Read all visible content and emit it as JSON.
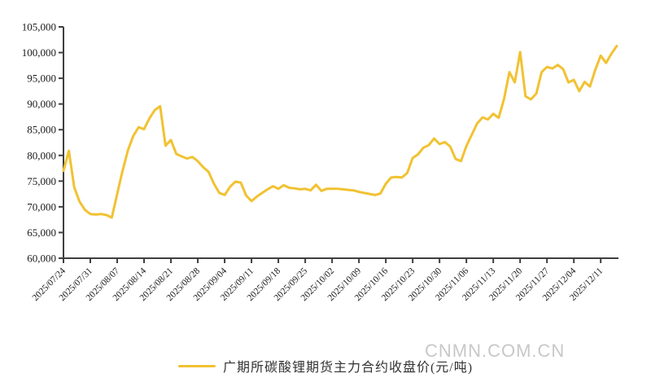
{
  "watermark": "CNMN.COM.CN",
  "legend": {
    "label": "广期所碳酸锂期货主力合约收盘价(元/吨)"
  },
  "chart_data": {
    "type": "line",
    "title": "",
    "xlabel": "",
    "ylabel": "",
    "series_name": "广期所碳酸锂期货主力合约收盘价(元/吨)",
    "line_color": "#F1C232",
    "axis_color": "#3f3f3f",
    "grid": false,
    "legend_position": "bottom-center",
    "ylim": [
      60000,
      105000
    ],
    "y_tick_step": 5000,
    "y_tick_labels": [
      "60,000",
      "65,000",
      "70,000",
      "75,000",
      "80,000",
      "85,000",
      "90,000",
      "95,000",
      "100,000",
      "105,000"
    ],
    "points_per_tick": 5,
    "x_tick_labels": [
      "2025/07/24",
      "2025/07/31",
      "2025/08/07",
      "2025/08/14",
      "2025/08/21",
      "2025/08/28",
      "2025/09/04",
      "2025/09/11",
      "2025/09/18",
      "2025/09/25",
      "2025/10/02",
      "2025/10/09",
      "2025/10/16",
      "2025/10/23",
      "2025/10/30",
      "2025/11/06",
      "2025/11/13",
      "2025/11/20",
      "2025/11/27",
      "2025/12/04",
      "2025/12/11"
    ],
    "values": [
      77000,
      80900,
      73800,
      71000,
      69400,
      68600,
      68500,
      68600,
      68400,
      67900,
      72500,
      77000,
      81000,
      83800,
      85500,
      85100,
      87200,
      88800,
      89560,
      81900,
      83000,
      80300,
      79800,
      79400,
      79700,
      78900,
      77700,
      76800,
      74500,
      72700,
      72300,
      73900,
      74900,
      74700,
      72200,
      71100,
      72000,
      72700,
      73400,
      74000,
      73500,
      74200,
      73700,
      73600,
      73400,
      73500,
      73200,
      74300,
      73100,
      73500,
      73500,
      73500,
      73400,
      73300,
      73200,
      72900,
      72700,
      72500,
      72300,
      72600,
      74500,
      75700,
      75800,
      75700,
      76600,
      79500,
      80200,
      81500,
      82000,
      83300,
      82200,
      82600,
      81700,
      79300,
      78900,
      81800,
      84000,
      86200,
      87400,
      87000,
      88100,
      87300,
      91000,
      96200,
      94200,
      100100,
      91500,
      90900,
      92000,
      96200,
      97200,
      96900,
      97600,
      96800,
      94200,
      94700,
      92500,
      94300,
      93400,
      96700,
      99400,
      98000,
      99800,
      101300
    ]
  }
}
